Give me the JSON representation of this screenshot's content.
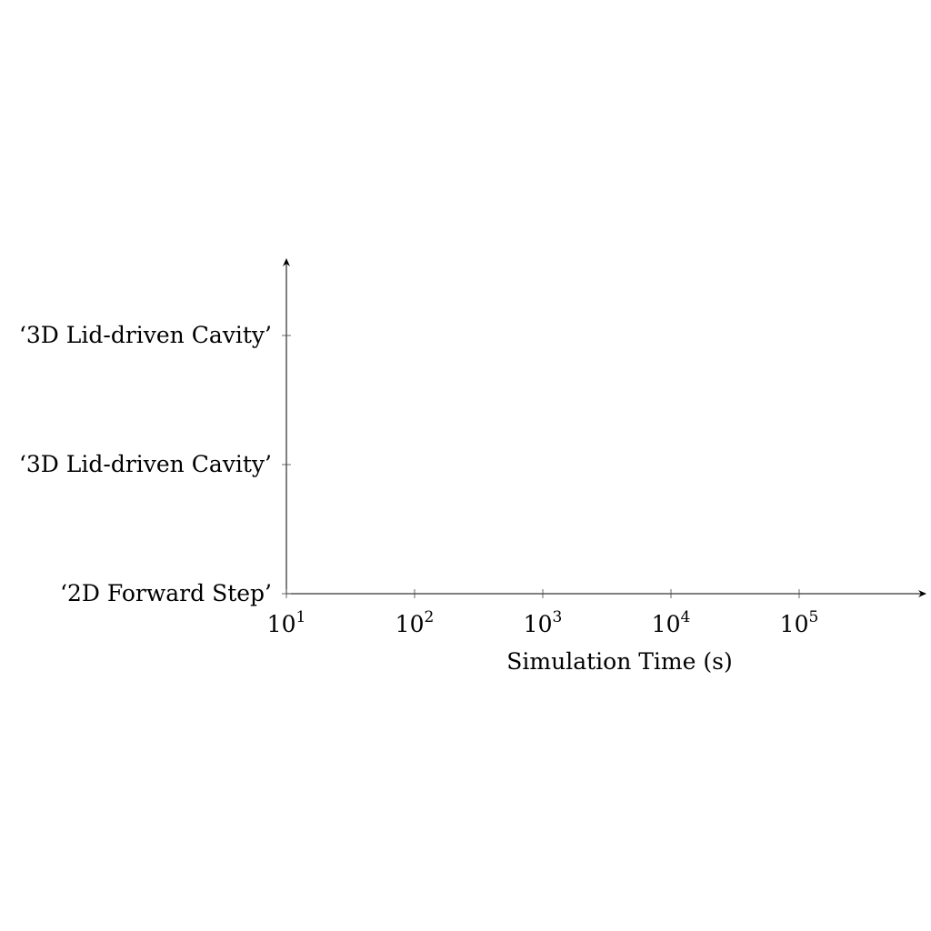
{
  "chart_data": {
    "type": "bar",
    "orientation": "horizontal",
    "title": "",
    "xlabel": "Simulation Time (s)",
    "ylabel": "",
    "x_scale": "log",
    "xlim": [
      10,
      5000000
    ],
    "x_ticks": [
      {
        "base": "10",
        "exp": "1",
        "value": 10
      },
      {
        "base": "10",
        "exp": "2",
        "value": 100
      },
      {
        "base": "10",
        "exp": "3",
        "value": 1000
      },
      {
        "base": "10",
        "exp": "4",
        "value": 10000
      },
      {
        "base": "10",
        "exp": "5",
        "value": 100000
      }
    ],
    "categories": [
      "‘2D Forward Step’",
      "‘3D Lid-driven Cavity’",
      "‘3D Lid-driven Cavity’"
    ],
    "series": [],
    "grid": false,
    "legend": "none",
    "axis_color": "#000000"
  }
}
